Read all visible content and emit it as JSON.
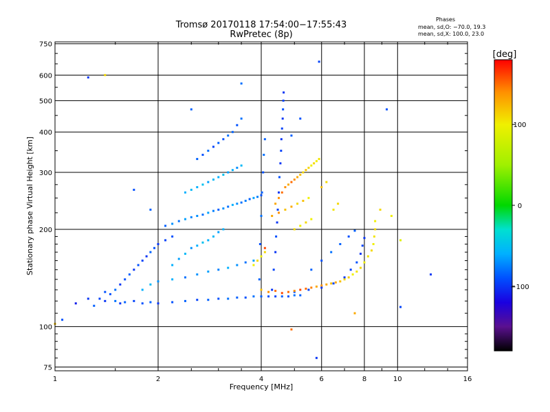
{
  "chart_data": {
    "type": "scatter",
    "title": "Tromsø 20170118 17:54:00−17:55:43",
    "subtitle": "RwPretec (8p)",
    "stats": {
      "heading": "Phases",
      "line1": "mean, sd,O: −70.0, 19.3",
      "line2": "mean, sd,X: 100.0, 23.0"
    },
    "xlabel": "Frequency [MHz]",
    "ylabel": "Stationary phase Virtual Height [km]",
    "xscale": "log",
    "yscale": "log",
    "xlim": [
      1,
      16
    ],
    "ylim": [
      73,
      760
    ],
    "grid": true,
    "x_ticks": [
      {
        "value": 1,
        "label": "1"
      },
      {
        "value": 2,
        "label": "2"
      },
      {
        "value": 4,
        "label": "4"
      },
      {
        "value": 6,
        "label": "6"
      },
      {
        "value": 8,
        "label": "8"
      },
      {
        "value": 10,
        "label": "10"
      },
      {
        "value": 16,
        "label": "16"
      }
    ],
    "y_ticks": [
      {
        "value": 75,
        "label": "75"
      },
      {
        "value": 100,
        "label": "100"
      },
      {
        "value": 200,
        "label": "200"
      },
      {
        "value": 300,
        "label": "300"
      },
      {
        "value": 400,
        "label": "400"
      },
      {
        "value": 500,
        "label": "500"
      },
      {
        "value": 600,
        "label": "600"
      },
      {
        "value": 750,
        "label": "750"
      }
    ],
    "colorbar": {
      "label": "[deg]",
      "range": [
        -180,
        180
      ],
      "ticks": [
        {
          "value": 100,
          "label": "100"
        },
        {
          "value": 0,
          "label": "0"
        },
        {
          "value": -100,
          "label": "−100"
        }
      ],
      "stops": [
        {
          "value": -180,
          "color": "#000000"
        },
        {
          "value": -150,
          "color": "#5a1090"
        },
        {
          "value": -120,
          "color": "#1a00e0"
        },
        {
          "value": -90,
          "color": "#0050ff"
        },
        {
          "value": -60,
          "color": "#00b0ff"
        },
        {
          "value": -30,
          "color": "#00e0d0"
        },
        {
          "value": 0,
          "color": "#00d800"
        },
        {
          "value": 50,
          "color": "#a0f000"
        },
        {
          "value": 100,
          "color": "#f0f000"
        },
        {
          "value": 140,
          "color": "#ff9000"
        },
        {
          "value": 180,
          "color": "#ff0000"
        }
      ]
    },
    "series": [
      {
        "mode": "O",
        "points": [
          [
            1.05,
            105,
            -90
          ],
          [
            1.15,
            118,
            -110
          ],
          [
            1.25,
            122,
            -100
          ],
          [
            1.3,
            116,
            -85
          ],
          [
            1.35,
            122,
            -95
          ],
          [
            1.4,
            120,
            -100
          ],
          [
            1.45,
            126,
            -90
          ],
          [
            1.5,
            120,
            -80
          ],
          [
            1.55,
            118,
            -100
          ],
          [
            1.6,
            119,
            -85
          ],
          [
            1.7,
            120,
            -95
          ],
          [
            1.8,
            118,
            -90
          ],
          [
            1.9,
            119,
            -85
          ],
          [
            2.0,
            118,
            -100
          ],
          [
            2.2,
            119,
            -90
          ],
          [
            2.4,
            120,
            -85
          ],
          [
            2.6,
            121,
            -95
          ],
          [
            2.8,
            121,
            -85
          ],
          [
            3.0,
            122,
            -90
          ],
          [
            3.2,
            122,
            -80
          ],
          [
            3.4,
            123,
            -85
          ],
          [
            3.6,
            123,
            -90
          ],
          [
            3.8,
            124,
            -80
          ],
          [
            4.0,
            124,
            -85
          ],
          [
            4.2,
            124,
            -90
          ],
          [
            4.4,
            124,
            -95
          ],
          [
            4.6,
            124,
            -85
          ],
          [
            4.8,
            124,
            -90
          ],
          [
            5.0,
            125,
            -80
          ],
          [
            5.2,
            125,
            -85
          ],
          [
            1.4,
            128,
            -90
          ],
          [
            1.5,
            130,
            -80
          ],
          [
            1.55,
            135,
            -100
          ],
          [
            1.6,
            140,
            -90
          ],
          [
            1.65,
            145,
            -85
          ],
          [
            1.7,
            150,
            -100
          ],
          [
            1.75,
            155,
            -90
          ],
          [
            1.8,
            160,
            -95
          ],
          [
            1.85,
            165,
            -100
          ],
          [
            1.9,
            170,
            -85
          ],
          [
            1.95,
            175,
            -90
          ],
          [
            2.0,
            180,
            -100
          ],
          [
            2.1,
            185,
            -95
          ],
          [
            2.2,
            190,
            -90
          ],
          [
            1.8,
            130,
            -60
          ],
          [
            1.9,
            135,
            -55
          ],
          [
            2.0,
            138,
            -70
          ],
          [
            2.2,
            140,
            -60
          ],
          [
            2.4,
            142,
            -80
          ],
          [
            2.6,
            145,
            -70
          ],
          [
            2.8,
            148,
            -65
          ],
          [
            3.0,
            150,
            -75
          ],
          [
            3.2,
            152,
            -60
          ],
          [
            3.4,
            155,
            -70
          ],
          [
            3.6,
            158,
            -80
          ],
          [
            3.8,
            160,
            -65
          ],
          [
            2.2,
            155,
            -60
          ],
          [
            2.3,
            162,
            -65
          ],
          [
            2.4,
            168,
            -55
          ],
          [
            2.5,
            175,
            -70
          ],
          [
            2.6,
            178,
            -60
          ],
          [
            2.7,
            182,
            -50
          ],
          [
            2.8,
            185,
            -60
          ],
          [
            2.9,
            190,
            -55
          ],
          [
            3.0,
            196,
            -65
          ],
          [
            3.1,
            200,
            -60
          ],
          [
            2.1,
            205,
            -85
          ],
          [
            2.2,
            208,
            -70
          ],
          [
            2.3,
            212,
            -80
          ],
          [
            2.4,
            215,
            -65
          ],
          [
            2.5,
            218,
            -75
          ],
          [
            2.6,
            220,
            -70
          ],
          [
            2.7,
            222,
            -80
          ],
          [
            2.8,
            225,
            -65
          ],
          [
            2.9,
            228,
            -75
          ],
          [
            3.0,
            230,
            -85
          ],
          [
            3.1,
            232,
            -70
          ],
          [
            3.2,
            235,
            -80
          ],
          [
            3.3,
            238,
            -60
          ],
          [
            3.4,
            240,
            -70
          ],
          [
            3.5,
            242,
            -80
          ],
          [
            3.6,
            245,
            -75
          ],
          [
            3.7,
            248,
            -85
          ],
          [
            3.8,
            250,
            -65
          ],
          [
            3.9,
            252,
            -75
          ],
          [
            4.0,
            255,
            -90
          ],
          [
            2.4,
            260,
            -60
          ],
          [
            2.5,
            265,
            -55
          ],
          [
            2.6,
            270,
            -60
          ],
          [
            2.7,
            275,
            -50
          ],
          [
            2.8,
            280,
            -65
          ],
          [
            2.9,
            285,
            -55
          ],
          [
            3.0,
            290,
            -60
          ],
          [
            3.1,
            295,
            -50
          ],
          [
            3.2,
            300,
            -65
          ],
          [
            3.3,
            305,
            -60
          ],
          [
            3.4,
            310,
            -70
          ],
          [
            3.5,
            315,
            -55
          ],
          [
            2.6,
            330,
            -85
          ],
          [
            2.7,
            340,
            -90
          ],
          [
            2.8,
            350,
            -80
          ],
          [
            2.9,
            360,
            -95
          ],
          [
            3.0,
            370,
            -85
          ],
          [
            3.1,
            380,
            -90
          ],
          [
            3.2,
            390,
            -80
          ],
          [
            3.3,
            400,
            -85
          ],
          [
            3.4,
            420,
            -90
          ],
          [
            3.5,
            440,
            -80
          ],
          [
            4.3,
            130,
            -100
          ],
          [
            4.35,
            150,
            -95
          ],
          [
            4.4,
            170,
            -100
          ],
          [
            4.42,
            190,
            -90
          ],
          [
            4.45,
            210,
            -100
          ],
          [
            4.47,
            230,
            -95
          ],
          [
            4.5,
            260,
            -100
          ],
          [
            4.52,
            290,
            -90
          ],
          [
            4.55,
            320,
            -100
          ],
          [
            4.57,
            350,
            -95
          ],
          [
            4.58,
            380,
            -100
          ],
          [
            4.6,
            410,
            -95
          ],
          [
            4.62,
            440,
            -100
          ],
          [
            4.63,
            470,
            -90
          ],
          [
            4.64,
            500,
            -95
          ],
          [
            4.65,
            530,
            -100
          ],
          [
            3.95,
            140,
            -85
          ],
          [
            3.97,
            180,
            -90
          ],
          [
            4.0,
            220,
            -80
          ],
          [
            4.02,
            260,
            -85
          ],
          [
            4.05,
            300,
            -90
          ],
          [
            4.07,
            340,
            -80
          ],
          [
            4.1,
            380,
            -85
          ],
          [
            5.0,
            128,
            -90
          ],
          [
            5.5,
            130,
            -95
          ],
          [
            6.0,
            132,
            -100
          ],
          [
            6.5,
            136,
            -95
          ],
          [
            7.0,
            142,
            -100
          ],
          [
            7.3,
            150,
            -95
          ],
          [
            7.6,
            158,
            -90
          ],
          [
            7.8,
            168,
            -100
          ],
          [
            7.9,
            178,
            -95
          ],
          [
            8.0,
            188,
            -100
          ],
          [
            5.6,
            150,
            -85
          ],
          [
            6.0,
            160,
            -90
          ],
          [
            6.4,
            170,
            -80
          ],
          [
            6.8,
            180,
            -85
          ],
          [
            7.2,
            190,
            -90
          ],
          [
            7.5,
            198,
            -85
          ],
          [
            1.25,
            590,
            -100
          ],
          [
            5.9,
            660,
            -95
          ],
          [
            5.8,
            80,
            -100
          ],
          [
            9.3,
            470,
            -90
          ],
          [
            12.5,
            145,
            -100
          ],
          [
            10.2,
            115,
            -95
          ],
          [
            3.5,
            565,
            -80
          ],
          [
            2.5,
            470,
            -85
          ],
          [
            1.7,
            265,
            -90
          ],
          [
            1.9,
            230,
            -85
          ],
          [
            5.2,
            440,
            -90
          ],
          [
            4.9,
            390,
            -85
          ]
        ]
      },
      {
        "mode": "X",
        "points": [
          [
            4.0,
            130,
            120
          ],
          [
            4.2,
            128,
            140
          ],
          [
            4.4,
            129,
            150
          ],
          [
            4.6,
            127,
            160
          ],
          [
            4.8,
            128,
            150
          ],
          [
            5.0,
            129,
            140
          ],
          [
            5.2,
            130,
            160
          ],
          [
            5.4,
            131,
            150
          ],
          [
            5.6,
            132,
            145
          ],
          [
            5.8,
            133,
            130
          ],
          [
            6.0,
            134,
            140
          ],
          [
            6.2,
            135,
            130
          ],
          [
            6.4,
            136,
            120
          ],
          [
            6.6,
            137,
            130
          ],
          [
            6.8,
            138,
            120
          ],
          [
            7.0,
            140,
            110
          ],
          [
            7.2,
            142,
            115
          ],
          [
            7.4,
            145,
            100
          ],
          [
            7.6,
            148,
            105
          ],
          [
            7.8,
            152,
            110
          ],
          [
            8.0,
            158,
            100
          ],
          [
            8.2,
            165,
            105
          ],
          [
            8.4,
            172,
            110
          ],
          [
            8.5,
            180,
            100
          ],
          [
            8.55,
            190,
            105
          ],
          [
            8.6,
            200,
            110
          ],
          [
            8.6,
            212,
            100
          ],
          [
            4.4,
            240,
            130
          ],
          [
            4.5,
            250,
            140
          ],
          [
            4.6,
            260,
            150
          ],
          [
            4.7,
            270,
            140
          ],
          [
            4.8,
            275,
            130
          ],
          [
            4.9,
            280,
            150
          ],
          [
            5.0,
            285,
            140
          ],
          [
            5.1,
            290,
            130
          ],
          [
            5.2,
            295,
            120
          ],
          [
            5.3,
            300,
            110
          ],
          [
            5.4,
            305,
            120
          ],
          [
            5.5,
            310,
            110
          ],
          [
            5.6,
            315,
            100
          ],
          [
            5.7,
            320,
            110
          ],
          [
            5.8,
            325,
            100
          ],
          [
            5.9,
            330,
            105
          ],
          [
            4.3,
            220,
            130
          ],
          [
            4.5,
            225,
            140
          ],
          [
            4.7,
            230,
            120
          ],
          [
            4.9,
            235,
            130
          ],
          [
            5.1,
            240,
            110
          ],
          [
            5.3,
            245,
            120
          ],
          [
            5.5,
            250,
            100
          ],
          [
            5.0,
            200,
            110
          ],
          [
            5.2,
            205,
            100
          ],
          [
            5.4,
            210,
            110
          ],
          [
            5.6,
            215,
            100
          ],
          [
            3.8,
            155,
            100
          ],
          [
            3.9,
            160,
            110
          ],
          [
            4.0,
            165,
            100
          ],
          [
            4.1,
            170,
            110
          ],
          [
            6.5,
            230,
            105
          ],
          [
            6.7,
            240,
            110
          ],
          [
            6.0,
            270,
            120
          ],
          [
            6.2,
            280,
            110
          ],
          [
            1.0,
            102,
            120
          ],
          [
            1.4,
            600,
            110
          ],
          [
            4.1,
            175,
            160
          ],
          [
            4.9,
            98,
            150
          ],
          [
            7.5,
            110,
            130
          ],
          [
            8.9,
            230,
            110
          ],
          [
            9.6,
            220,
            100
          ],
          [
            10.2,
            185,
            90
          ]
        ]
      }
    ]
  }
}
